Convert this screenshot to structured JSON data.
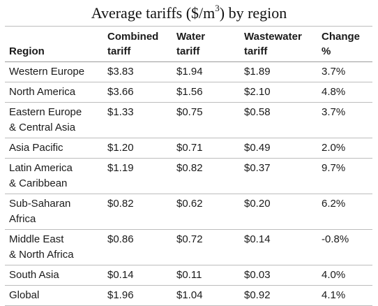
{
  "title": {
    "text_before": "Average tariffs ($/m",
    "superscript": "3",
    "text_after": ") by region"
  },
  "table": {
    "headers": [
      [
        "",
        "Region"
      ],
      [
        "Combined",
        "tariff"
      ],
      [
        "Water",
        "tariff"
      ],
      [
        "Wastewater",
        "tariff"
      ],
      [
        "Change",
        "%"
      ]
    ],
    "rows": [
      {
        "region": [
          "Western Europe"
        ],
        "combined": "$3.83",
        "water": "$1.94",
        "wastewater": "$1.89",
        "change": "3.7%"
      },
      {
        "region": [
          "North America"
        ],
        "combined": "$3.66",
        "water": "$1.56",
        "wastewater": "$2.10",
        "change": "4.8%"
      },
      {
        "region": [
          "Eastern Europe",
          "& Central Asia"
        ],
        "combined": "$1.33",
        "water": "$0.75",
        "wastewater": "$0.58",
        "change": "3.7%"
      },
      {
        "region": [
          "Asia Pacific"
        ],
        "combined": "$1.20",
        "water": "$0.71",
        "wastewater": "$0.49",
        "change": "2.0%"
      },
      {
        "region": [
          "Latin America",
          "& Caribbean"
        ],
        "combined": "$1.19",
        "water": "$0.82",
        "wastewater": "$0.37",
        "change": "9.7%"
      },
      {
        "region": [
          "Sub-Saharan",
          "Africa"
        ],
        "combined": "$0.82",
        "water": "$0.62",
        "wastewater": "$0.20",
        "change": "6.2%"
      },
      {
        "region": [
          "Middle East",
          "& North Africa"
        ],
        "combined": "$0.86",
        "water": "$0.72",
        "wastewater": "$0.14",
        "change": "-0.8%"
      },
      {
        "region": [
          "South Asia"
        ],
        "combined": "$0.14",
        "water": "$0.11",
        "wastewater": "$0.03",
        "change": "4.0%"
      },
      {
        "region": [
          "Global"
        ],
        "combined": "$1.96",
        "water": "$1.04",
        "wastewater": "$0.92",
        "change": "4.1%"
      }
    ]
  }
}
